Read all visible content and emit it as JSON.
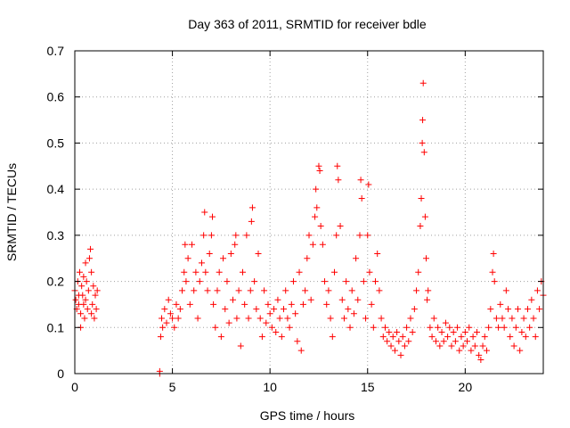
{
  "chart_data": {
    "type": "scatter",
    "title": "Day 363 of 2011, SRMTID for receiver bdle",
    "xlabel": "GPS time / hours",
    "ylabel": "SRMTID / TECUs",
    "xlim": [
      0,
      24
    ],
    "ylim": [
      0,
      0.7
    ],
    "xticks": [
      0,
      5,
      10,
      15,
      20
    ],
    "yticks": [
      0,
      0.1,
      0.2,
      0.3,
      0.4,
      0.5,
      0.6,
      0.7
    ],
    "xtick_labels": [
      "0",
      "5",
      "10",
      "15",
      "20"
    ],
    "ytick_labels": [
      "0",
      "0.1",
      "0.2",
      "0.3",
      "0.4",
      "0.5",
      "0.6",
      "0.7"
    ],
    "grid": true,
    "marker": "plus",
    "color": "#ff0000",
    "series": [
      {
        "name": "SRMTID",
        "points": [
          [
            0.0,
            0.18
          ],
          [
            0.05,
            0.16
          ],
          [
            0.1,
            0.14
          ],
          [
            0.15,
            0.2
          ],
          [
            0.2,
            0.15
          ],
          [
            0.25,
            0.22
          ],
          [
            0.3,
            0.13
          ],
          [
            0.35,
            0.19
          ],
          [
            0.4,
            0.17
          ],
          [
            0.45,
            0.21
          ],
          [
            0.5,
            0.12
          ],
          [
            0.55,
            0.16
          ],
          [
            0.6,
            0.2
          ],
          [
            0.65,
            0.14
          ],
          [
            0.7,
            0.18
          ],
          [
            0.75,
            0.25
          ],
          [
            0.8,
            0.27
          ],
          [
            0.85,
            0.22
          ],
          [
            0.9,
            0.15
          ],
          [
            0.95,
            0.19
          ],
          [
            1.0,
            0.12
          ],
          [
            1.05,
            0.17
          ],
          [
            1.1,
            0.14
          ],
          [
            1.15,
            0.18
          ],
          [
            0.3,
            0.1
          ],
          [
            0.55,
            0.24
          ],
          [
            0.85,
            0.13
          ],
          [
            0.2,
            0.17
          ],
          [
            0.45,
            0.15
          ],
          [
            4.35,
            0.0
          ],
          [
            4.35,
            0.005
          ],
          [
            4.4,
            0.08
          ],
          [
            4.45,
            0.12
          ],
          [
            4.5,
            0.1
          ],
          [
            4.6,
            0.14
          ],
          [
            4.7,
            0.11
          ],
          [
            4.8,
            0.16
          ],
          [
            4.9,
            0.13
          ],
          [
            5.0,
            0.12
          ],
          [
            5.1,
            0.1
          ],
          [
            5.2,
            0.15
          ],
          [
            5.3,
            0.12
          ],
          [
            5.4,
            0.14
          ],
          [
            5.5,
            0.18
          ],
          [
            5.6,
            0.22
          ],
          [
            5.65,
            0.28
          ],
          [
            5.7,
            0.2
          ],
          [
            5.8,
            0.25
          ],
          [
            5.9,
            0.15
          ],
          [
            6.0,
            0.28
          ],
          [
            6.1,
            0.18
          ],
          [
            6.2,
            0.22
          ],
          [
            6.3,
            0.12
          ],
          [
            6.4,
            0.2
          ],
          [
            6.5,
            0.24
          ],
          [
            6.6,
            0.3
          ],
          [
            6.65,
            0.35
          ],
          [
            6.7,
            0.22
          ],
          [
            6.8,
            0.18
          ],
          [
            6.9,
            0.26
          ],
          [
            7.0,
            0.3
          ],
          [
            7.05,
            0.34
          ],
          [
            7.1,
            0.15
          ],
          [
            7.2,
            0.1
          ],
          [
            7.3,
            0.18
          ],
          [
            7.4,
            0.22
          ],
          [
            7.5,
            0.08
          ],
          [
            7.6,
            0.25
          ],
          [
            7.7,
            0.14
          ],
          [
            7.8,
            0.2
          ],
          [
            7.9,
            0.11
          ],
          [
            8.0,
            0.26
          ],
          [
            8.1,
            0.16
          ],
          [
            8.2,
            0.28
          ],
          [
            8.25,
            0.3
          ],
          [
            8.3,
            0.12
          ],
          [
            8.4,
            0.18
          ],
          [
            8.5,
            0.06
          ],
          [
            8.6,
            0.22
          ],
          [
            8.7,
            0.15
          ],
          [
            8.8,
            0.3
          ],
          [
            8.9,
            0.12
          ],
          [
            9.0,
            0.18
          ],
          [
            9.05,
            0.33
          ],
          [
            9.1,
            0.36
          ],
          [
            9.2,
            0.2
          ],
          [
            9.3,
            0.14
          ],
          [
            9.4,
            0.26
          ],
          [
            9.5,
            0.12
          ],
          [
            9.6,
            0.08
          ],
          [
            9.7,
            0.18
          ],
          [
            9.8,
            0.11
          ],
          [
            9.9,
            0.15
          ],
          [
            10.0,
            0.13
          ],
          [
            10.1,
            0.1
          ],
          [
            10.2,
            0.14
          ],
          [
            10.3,
            0.09
          ],
          [
            10.4,
            0.16
          ],
          [
            10.5,
            0.12
          ],
          [
            10.6,
            0.08
          ],
          [
            10.7,
            0.14
          ],
          [
            10.8,
            0.18
          ],
          [
            10.9,
            0.12
          ],
          [
            11.0,
            0.1
          ],
          [
            11.1,
            0.15
          ],
          [
            11.2,
            0.2
          ],
          [
            11.3,
            0.13
          ],
          [
            11.4,
            0.07
          ],
          [
            11.5,
            0.22
          ],
          [
            11.6,
            0.05
          ],
          [
            11.7,
            0.15
          ],
          [
            11.8,
            0.18
          ],
          [
            11.9,
            0.25
          ],
          [
            12.0,
            0.3
          ],
          [
            12.1,
            0.16
          ],
          [
            12.2,
            0.28
          ],
          [
            12.3,
            0.34
          ],
          [
            12.35,
            0.4
          ],
          [
            12.4,
            0.36
          ],
          [
            12.5,
            0.45
          ],
          [
            12.55,
            0.44
          ],
          [
            12.6,
            0.32
          ],
          [
            12.7,
            0.28
          ],
          [
            12.8,
            0.2
          ],
          [
            12.9,
            0.15
          ],
          [
            13.0,
            0.18
          ],
          [
            13.1,
            0.12
          ],
          [
            13.2,
            0.08
          ],
          [
            13.3,
            0.22
          ],
          [
            13.4,
            0.3
          ],
          [
            13.45,
            0.45
          ],
          [
            13.5,
            0.42
          ],
          [
            13.6,
            0.32
          ],
          [
            13.7,
            0.16
          ],
          [
            13.8,
            0.12
          ],
          [
            13.9,
            0.2
          ],
          [
            14.0,
            0.14
          ],
          [
            14.1,
            0.1
          ],
          [
            14.2,
            0.18
          ],
          [
            14.3,
            0.13
          ],
          [
            14.4,
            0.25
          ],
          [
            14.5,
            0.16
          ],
          [
            14.6,
            0.3
          ],
          [
            14.65,
            0.42
          ],
          [
            14.7,
            0.38
          ],
          [
            14.8,
            0.2
          ],
          [
            14.9,
            0.12
          ],
          [
            15.0,
            0.3
          ],
          [
            15.05,
            0.41
          ],
          [
            15.1,
            0.22
          ],
          [
            15.2,
            0.15
          ],
          [
            15.3,
            0.1
          ],
          [
            15.4,
            0.2
          ],
          [
            15.5,
            0.26
          ],
          [
            15.6,
            0.18
          ],
          [
            15.7,
            0.12
          ],
          [
            15.8,
            0.08
          ],
          [
            15.9,
            0.1
          ],
          [
            16.0,
            0.07
          ],
          [
            16.1,
            0.09
          ],
          [
            16.2,
            0.06
          ],
          [
            16.3,
            0.08
          ],
          [
            16.4,
            0.05
          ],
          [
            16.5,
            0.09
          ],
          [
            16.6,
            0.07
          ],
          [
            16.7,
            0.04
          ],
          [
            16.8,
            0.08
          ],
          [
            16.9,
            0.06
          ],
          [
            17.0,
            0.1
          ],
          [
            17.1,
            0.07
          ],
          [
            17.2,
            0.12
          ],
          [
            17.3,
            0.09
          ],
          [
            17.4,
            0.14
          ],
          [
            17.5,
            0.18
          ],
          [
            17.6,
            0.22
          ],
          [
            17.7,
            0.32
          ],
          [
            17.75,
            0.38
          ],
          [
            17.8,
            0.5
          ],
          [
            17.82,
            0.55
          ],
          [
            17.85,
            0.63
          ],
          [
            17.9,
            0.48
          ],
          [
            17.95,
            0.34
          ],
          [
            18.0,
            0.25
          ],
          [
            18.05,
            0.16
          ],
          [
            18.1,
            0.18
          ],
          [
            18.2,
            0.1
          ],
          [
            18.3,
            0.08
          ],
          [
            18.4,
            0.12
          ],
          [
            18.5,
            0.07
          ],
          [
            18.6,
            0.1
          ],
          [
            18.7,
            0.06
          ],
          [
            18.8,
            0.09
          ],
          [
            18.9,
            0.07
          ],
          [
            19.0,
            0.11
          ],
          [
            19.1,
            0.08
          ],
          [
            19.2,
            0.1
          ],
          [
            19.3,
            0.06
          ],
          [
            19.4,
            0.09
          ],
          [
            19.5,
            0.07
          ],
          [
            19.6,
            0.1
          ],
          [
            19.7,
            0.05
          ],
          [
            19.8,
            0.08
          ],
          [
            19.9,
            0.06
          ],
          [
            20.0,
            0.09
          ],
          [
            20.1,
            0.07
          ],
          [
            20.2,
            0.1
          ],
          [
            20.3,
            0.05
          ],
          [
            20.4,
            0.08
          ],
          [
            20.5,
            0.06
          ],
          [
            20.6,
            0.09
          ],
          [
            20.7,
            0.04
          ],
          [
            20.8,
            0.03
          ],
          [
            20.9,
            0.06
          ],
          [
            21.0,
            0.08
          ],
          [
            21.1,
            0.05
          ],
          [
            21.2,
            0.1
          ],
          [
            21.3,
            0.14
          ],
          [
            21.4,
            0.22
          ],
          [
            21.45,
            0.26
          ],
          [
            21.5,
            0.2
          ],
          [
            21.6,
            0.12
          ],
          [
            21.7,
            0.1
          ],
          [
            21.8,
            0.15
          ],
          [
            21.9,
            0.12
          ],
          [
            22.0,
            0.1
          ],
          [
            22.1,
            0.18
          ],
          [
            22.2,
            0.14
          ],
          [
            22.3,
            0.08
          ],
          [
            22.4,
            0.12
          ],
          [
            22.5,
            0.06
          ],
          [
            22.6,
            0.1
          ],
          [
            22.7,
            0.14
          ],
          [
            22.8,
            0.05
          ],
          [
            22.9,
            0.09
          ],
          [
            23.0,
            0.12
          ],
          [
            23.1,
            0.08
          ],
          [
            23.2,
            0.14
          ],
          [
            23.3,
            0.1
          ],
          [
            23.4,
            0.16
          ],
          [
            23.5,
            0.12
          ],
          [
            23.6,
            0.08
          ],
          [
            23.7,
            0.18
          ],
          [
            23.8,
            0.14
          ],
          [
            23.9,
            0.2
          ],
          [
            24.0,
            0.17
          ]
        ]
      }
    ]
  }
}
